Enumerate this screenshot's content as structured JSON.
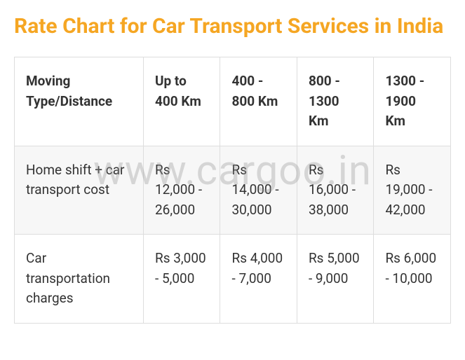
{
  "title": "Rate Chart for Car Transport Services in India",
  "watermark": "www.cargoo.in",
  "table": {
    "columns": [
      "Moving Type/Distance",
      "Up to 400 Km",
      "400 - 800 Km",
      "800 - 1300 Km",
      "1300 - 1900 Km"
    ],
    "rows": [
      {
        "label": "Home shift + car transport cost",
        "cells": [
          "Rs 12,000 - 26,000",
          "Rs 14,000 - 30,000",
          "Rs 16,000 - 38,000",
          "Rs 19,000 - 42,000"
        ]
      },
      {
        "label": "Car transportation charges",
        "cells": [
          "Rs 3,000 - 5,000",
          "Rs 4,000 - 7,000",
          "Rs 5,000 - 9,000",
          "Rs 6,000 - 10,000"
        ]
      }
    ]
  },
  "colors": {
    "title": "#f5a623",
    "text": "#333333",
    "border": "#dddddd",
    "shade": "#f7f7f7",
    "background": "#ffffff"
  }
}
